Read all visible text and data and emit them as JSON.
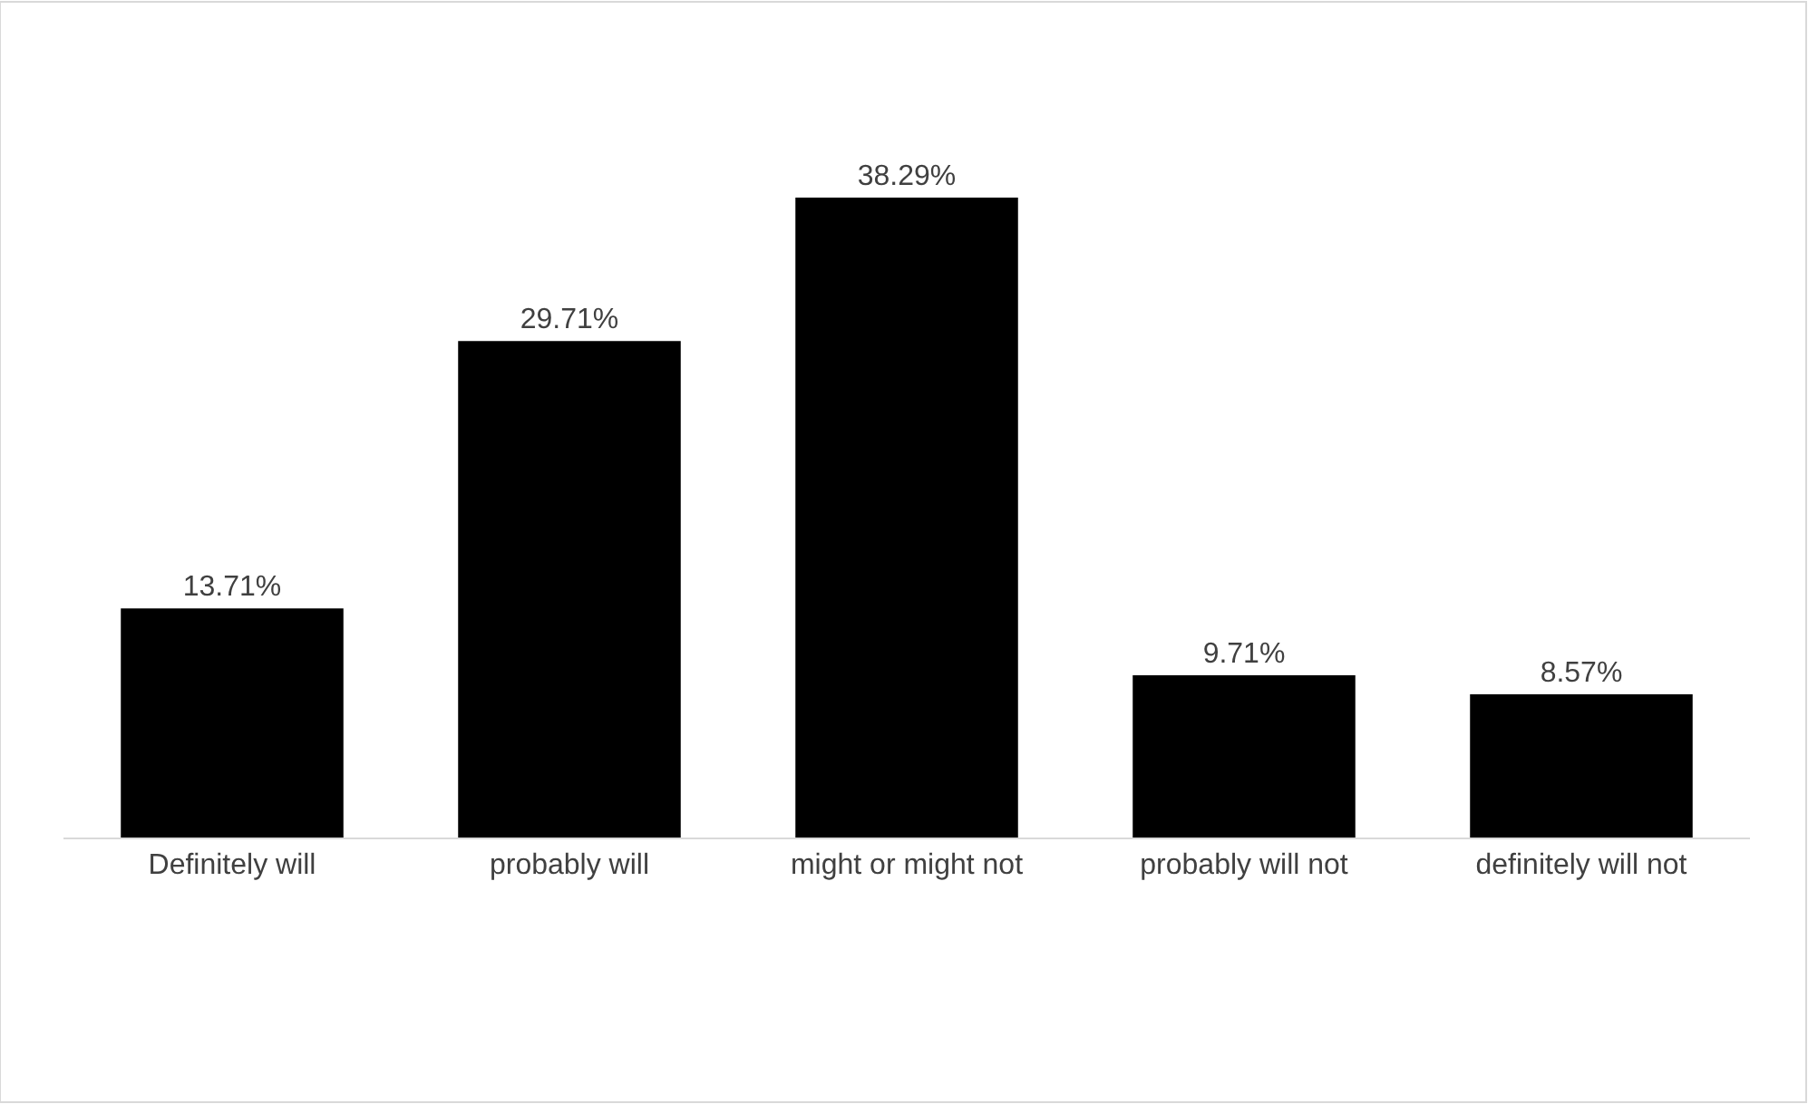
{
  "chart_data": {
    "type": "bar",
    "categories": [
      "Definitely will",
      "probably will",
      "might or might not",
      "probably will not",
      "definitely will not"
    ],
    "values": [
      13.71,
      29.71,
      38.29,
      9.71,
      8.57
    ],
    "value_labels": [
      "13.71%",
      "29.71%",
      "38.29%",
      "9.71%",
      "8.57%"
    ],
    "color": "#000000",
    "legend": false,
    "tick_labels": "x"
  }
}
